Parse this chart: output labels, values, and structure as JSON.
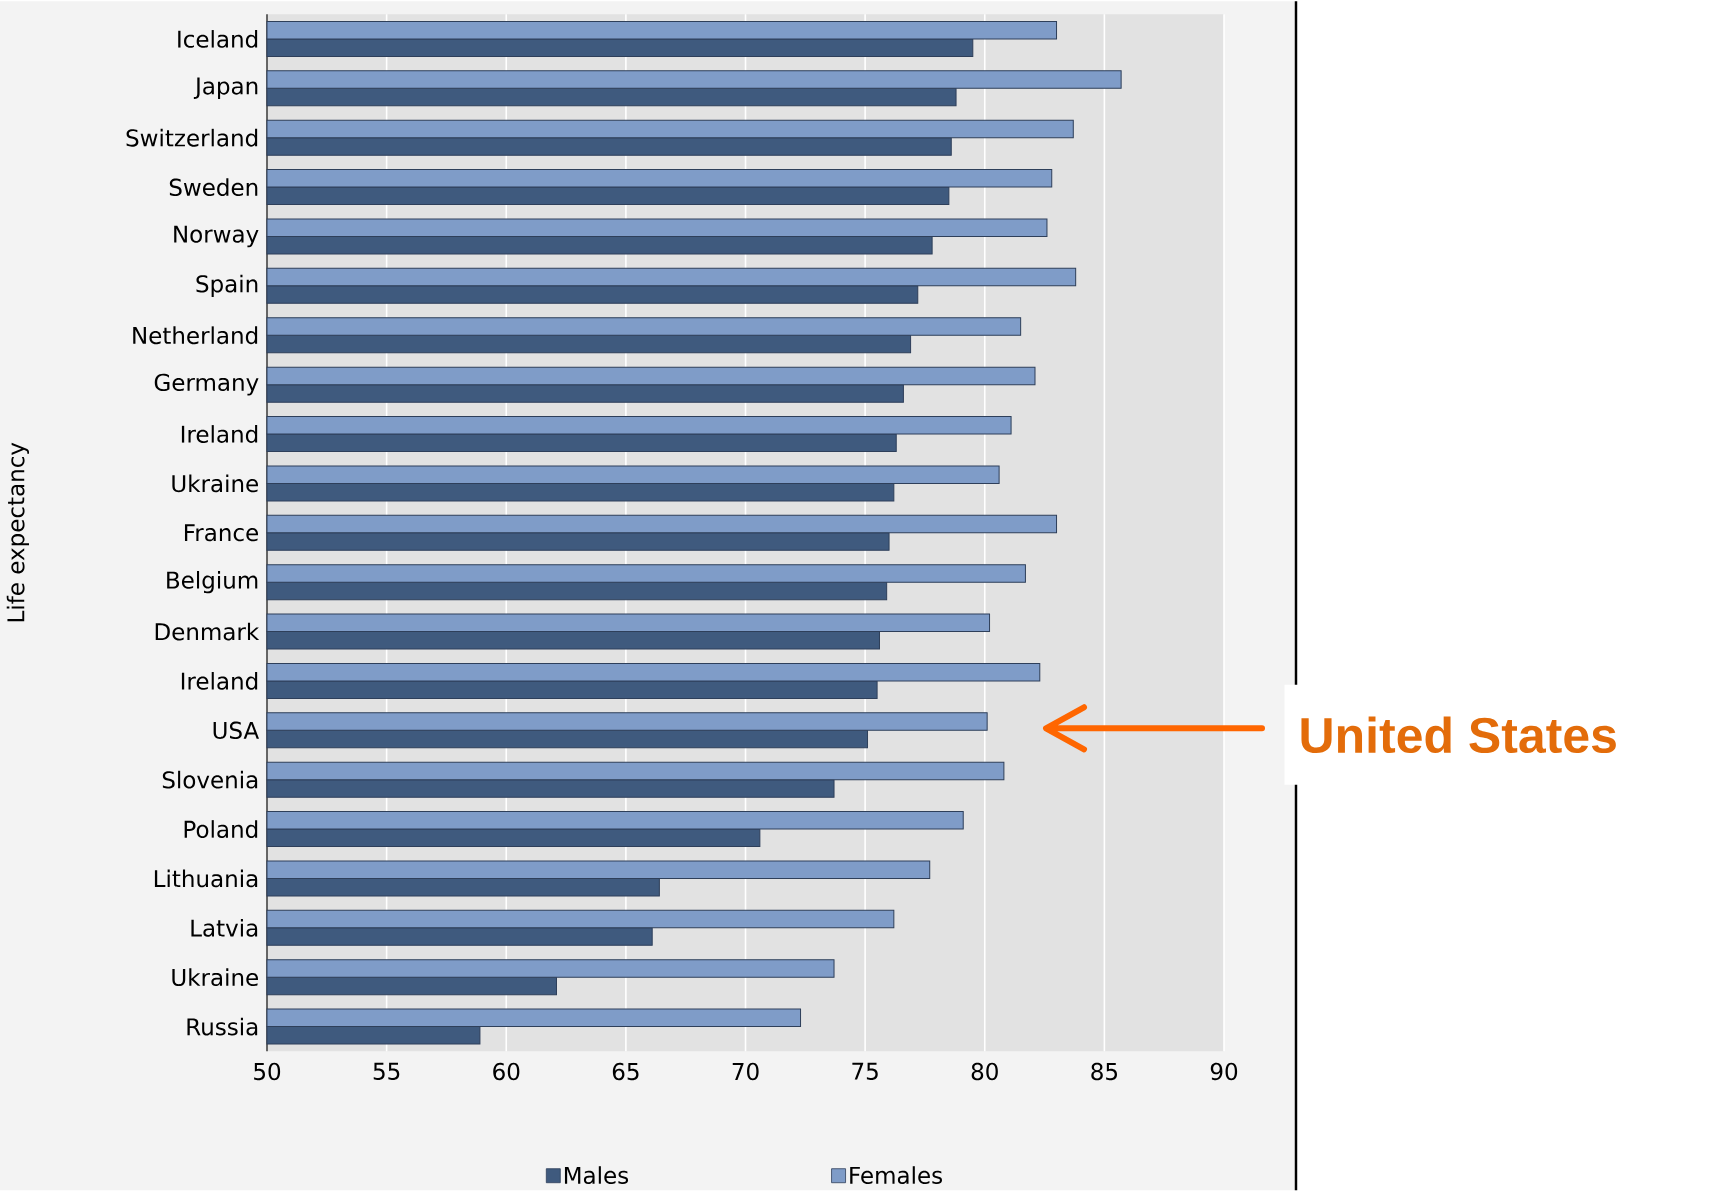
{
  "chart_data": {
    "type": "bar",
    "orientation": "horizontal",
    "ylabel": "Life expectancy",
    "categories": [
      "Iceland",
      "Japan",
      "Switzerland",
      "Sweden",
      "Norway",
      "Spain",
      "Netherland",
      "Germany",
      "Ireland",
      "Ukraine",
      "France",
      "Belgium",
      "Denmark",
      "Ireland",
      "USA",
      "Slovenia",
      "Poland",
      "Lithuania",
      "Latvia",
      "Ukraine",
      "Russia"
    ],
    "series": [
      {
        "name": "Males",
        "color": "#3f5a7e",
        "values": [
          79.5,
          78.8,
          78.6,
          78.5,
          77.8,
          77.2,
          76.9,
          76.6,
          76.3,
          76.2,
          76.0,
          75.9,
          75.6,
          75.5,
          75.1,
          73.7,
          70.6,
          66.4,
          66.1,
          62.1,
          58.9
        ]
      },
      {
        "name": "Females",
        "color": "#7f9cc8",
        "values": [
          83.0,
          85.7,
          83.7,
          82.8,
          82.6,
          83.8,
          81.5,
          82.1,
          81.1,
          80.6,
          83.0,
          81.7,
          80.2,
          82.3,
          80.1,
          80.8,
          79.1,
          77.7,
          76.2,
          73.7,
          72.3
        ]
      }
    ],
    "xlim": [
      50,
      90
    ],
    "xticks": [
      50,
      55,
      60,
      65,
      70,
      75,
      80,
      85,
      90
    ],
    "grid": "x",
    "legend": "bottom",
    "annotations": [
      "United States"
    ]
  }
}
